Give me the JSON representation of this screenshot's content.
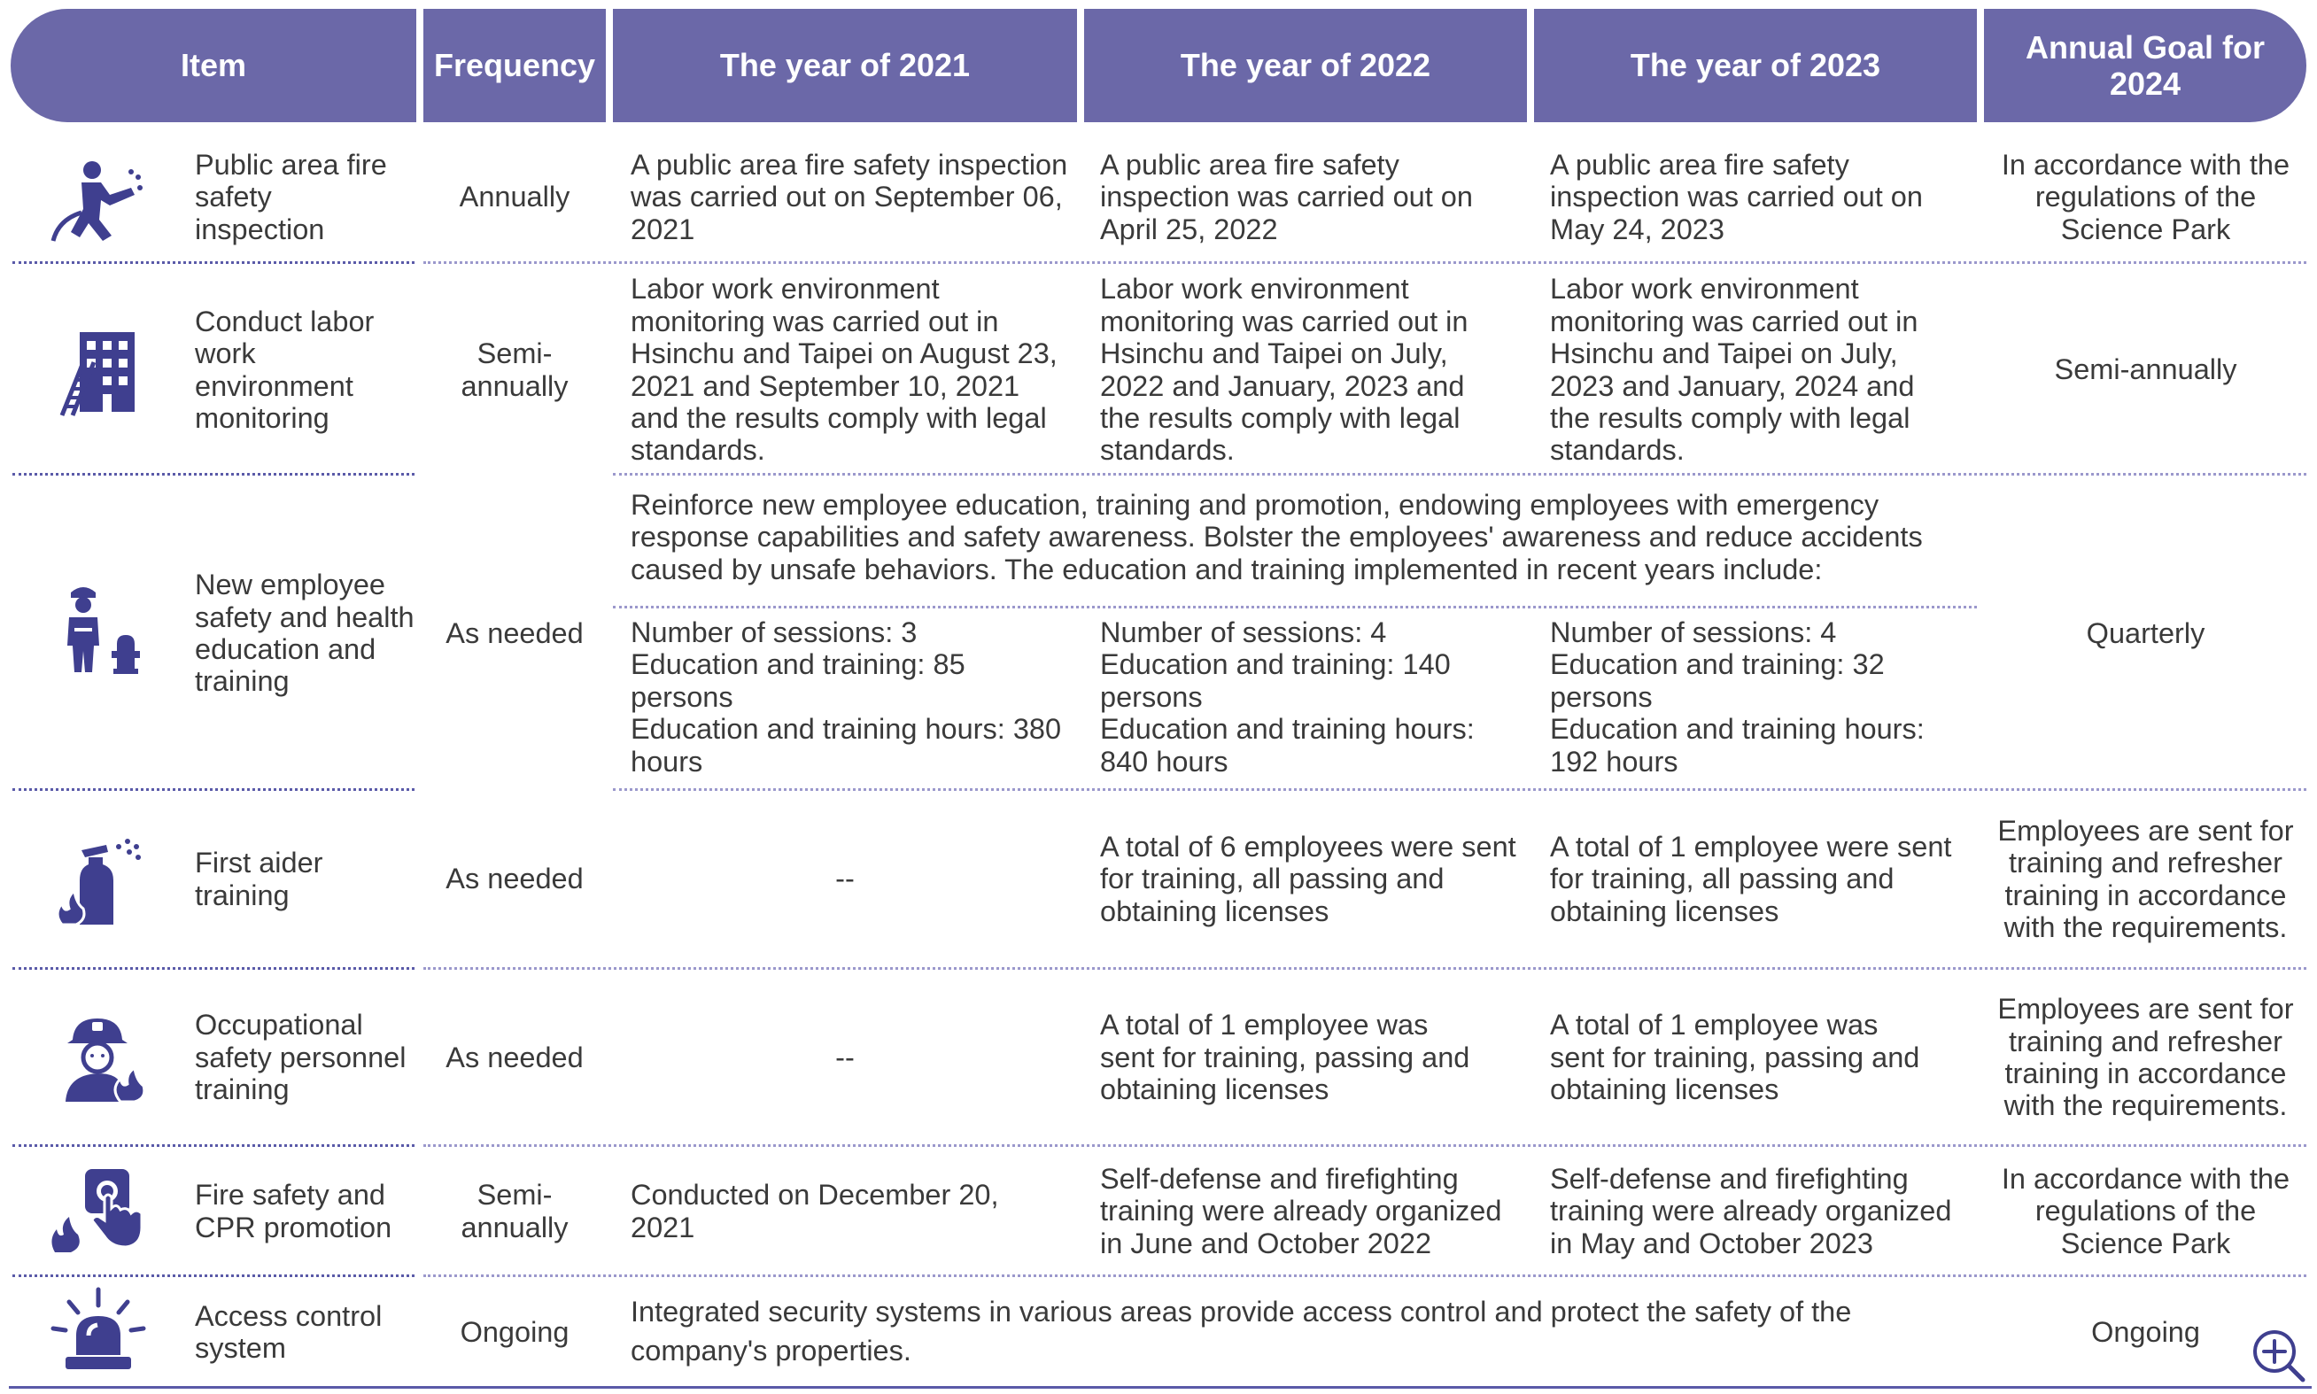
{
  "header": {
    "item": "Item",
    "frequency": "Frequency",
    "y2021": "The year of 2021",
    "y2022": "The year of 2022",
    "y2023": "The year of 2023",
    "goal": "Annual Goal for 2024"
  },
  "rows": [
    {
      "icon": "firefighter-hose-icon",
      "item": "Public area fire safety inspection",
      "frequency": "Annually",
      "y2021": "A public area fire safety inspection was carried out on September 06, 2021",
      "y2022": "A public area fire safety inspection was carried out on April 25, 2022",
      "y2023": "A public area fire safety inspection was carried out on May 24, 2023",
      "goal": "In accordance with the regulations of the Science Park"
    },
    {
      "icon": "building-ladder-icon",
      "item": "Conduct labor work environment monitoring",
      "frequency": "Semi-annually",
      "y2021": "Labor work environment monitoring was carried out in Hsinchu and Taipei on August 23, 2021 and September 10, 2021 and the results comply with legal standards.",
      "y2022": "Labor work environment monitoring was carried out in Hsinchu and Taipei on July, 2022 and January, 2023 and the results comply with legal standards.",
      "y2023": "Labor work environment monitoring was carried out in Hsinchu and Taipei on July, 2023 and January, 2024 and the results comply with legal standards.",
      "goal": "Semi-annually"
    },
    {
      "icon": "firefighter-hydrant-icon",
      "item": "New employee safety and health education and training",
      "frequency": "As needed",
      "intro": "Reinforce new employee education, training and promotion, endowing employees with emergency response capabilities and safety awareness. Bolster the employees' awareness and reduce accidents caused by unsafe behaviors. The education and training implemented in recent years include:",
      "y2021": "Number of sessions: 3\nEducation and training: 85 persons\nEducation and training hours: 380 hours",
      "y2022": "Number of sessions: 4\nEducation and training: 140 persons\nEducation and training hours: 840 hours",
      "y2023": "Number of sessions: 4\nEducation and training: 32 persons\nEducation and training hours: 192 hours",
      "goal": "Quarterly"
    },
    {
      "icon": "fire-extinguisher-icon",
      "item": "First aider training",
      "frequency": "As needed",
      "y2021": "--",
      "y2022": "A total of 6 employees were sent for training, all passing and obtaining licenses",
      "y2023": "A total of 1 employee were sent for training, all passing and obtaining licenses",
      "goal": "Employees are sent for training and refresher training in accordance with the requirements."
    },
    {
      "icon": "firefighter-portrait-icon",
      "item": "Occupational safety personnel training",
      "frequency": "As needed",
      "y2021": "--",
      "y2022": "A total of 1 employee was sent for training, passing and obtaining licenses",
      "y2023": "A total of 1 employee was sent for training, passing and obtaining licenses",
      "goal": "Employees are sent for training and refresher training in accordance with the requirements."
    },
    {
      "icon": "fire-alarm-button-icon",
      "item": "Fire safety and CPR promotion",
      "frequency": "Semi-annually",
      "y2021": "Conducted on December 20, 2021",
      "y2022": "Self-defense and firefighting training were already organized in June and October 2022",
      "y2023": "Self-defense and firefighting training were already organized in May and October 2023",
      "goal": "In accordance with the regulations of the Science Park"
    },
    {
      "icon": "siren-alarm-icon",
      "item": "Access control system",
      "frequency": "Ongoing",
      "merged": "Integrated security systems in various areas provide access control and protect the safety of the company's properties.",
      "goal": "Ongoing"
    }
  ],
  "zoom_icon": "zoom-in-icon",
  "colors": {
    "header": "#6b68a8",
    "divider": "#5a5aa8",
    "icon": "#3f3f8f"
  }
}
